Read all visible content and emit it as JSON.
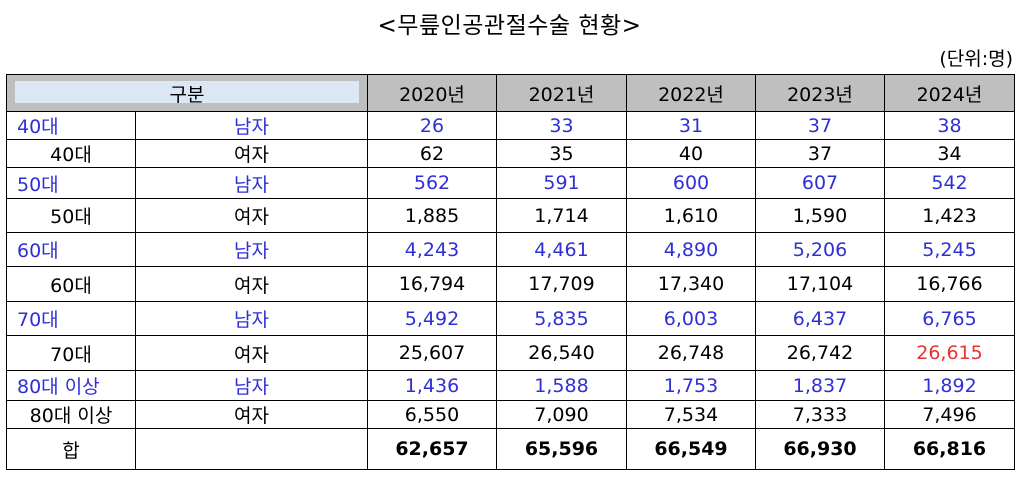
{
  "title": "<무릎인공관절수술 현황>",
  "unit": "(단위:명)",
  "header": {
    "category": "구분",
    "years": [
      "2020년",
      "2021년",
      "2022년",
      "2023년",
      "2024년"
    ]
  },
  "rows": [
    {
      "age": "40대",
      "sex": "남자",
      "values": [
        "26",
        "33",
        "31",
        "37",
        "38"
      ]
    },
    {
      "age": "40대",
      "sex": "여자",
      "values": [
        "62",
        "35",
        "40",
        "37",
        "34"
      ]
    },
    {
      "age": "50대",
      "sex": "남자",
      "values": [
        "562",
        "591",
        "600",
        "607",
        "542"
      ]
    },
    {
      "age": "50대",
      "sex": "여자",
      "values": [
        "1,885",
        "1,714",
        "1,610",
        "1,590",
        "1,423"
      ]
    },
    {
      "age": "60대",
      "sex": "남자",
      "values": [
        "4,243",
        "4,461",
        "4,890",
        "5,206",
        "5,245"
      ]
    },
    {
      "age": "60대",
      "sex": "여자",
      "values": [
        "16,794",
        "17,709",
        "17,340",
        "17,104",
        "16,766"
      ]
    },
    {
      "age": "70대",
      "sex": "남자",
      "values": [
        "5,492",
        "5,835",
        "6,003",
        "6,437",
        "6,765"
      ]
    },
    {
      "age": "70대",
      "sex": "여자",
      "values": [
        "25,607",
        "26,540",
        "26,748",
        "26,742",
        "26,615"
      ]
    },
    {
      "age": "80대 이상",
      "sex": "남자",
      "values": [
        "1,436",
        "1,588",
        "1,753",
        "1,837",
        "1,892"
      ]
    },
    {
      "age": "80대 이상",
      "sex": "여자",
      "values": [
        "6,550",
        "7,090",
        "7,534",
        "7,333",
        "7,496"
      ]
    }
  ],
  "total": {
    "label": "합",
    "values": [
      "62,657",
      "65,596",
      "66,549",
      "66,930",
      "66,816"
    ]
  },
  "colors": {
    "male_text": "#2f2fd6",
    "highlight_red": "#e8332f",
    "header_bg": "#bfbfbf",
    "category_box": "#dbe7f2"
  }
}
